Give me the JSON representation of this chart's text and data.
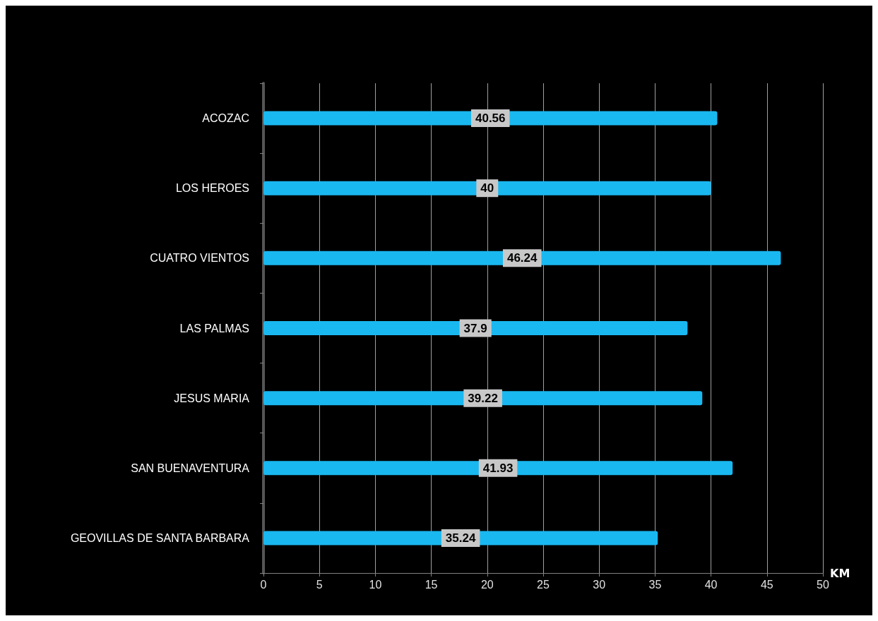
{
  "chart_data": {
    "type": "bar",
    "orientation": "horizontal",
    "xlabel": "KM",
    "categories": [
      "ACOZAC",
      "LOS HEROES",
      "CUATRO VIENTOS",
      "LAS PALMAS",
      "JESUS MARIA",
      "SAN BUENAVENTURA",
      "GEOVILLAS DE SANTA BARBARA"
    ],
    "values": [
      40.56,
      40,
      46.24,
      37.9,
      39.22,
      41.93,
      35.24
    ],
    "color": "#1ab8f0",
    "xlim": [
      0,
      50
    ],
    "xticks": [
      0,
      5,
      10,
      15,
      20,
      25,
      30,
      35,
      40,
      45,
      50
    ],
    "grid": "x",
    "data_labels": true
  }
}
